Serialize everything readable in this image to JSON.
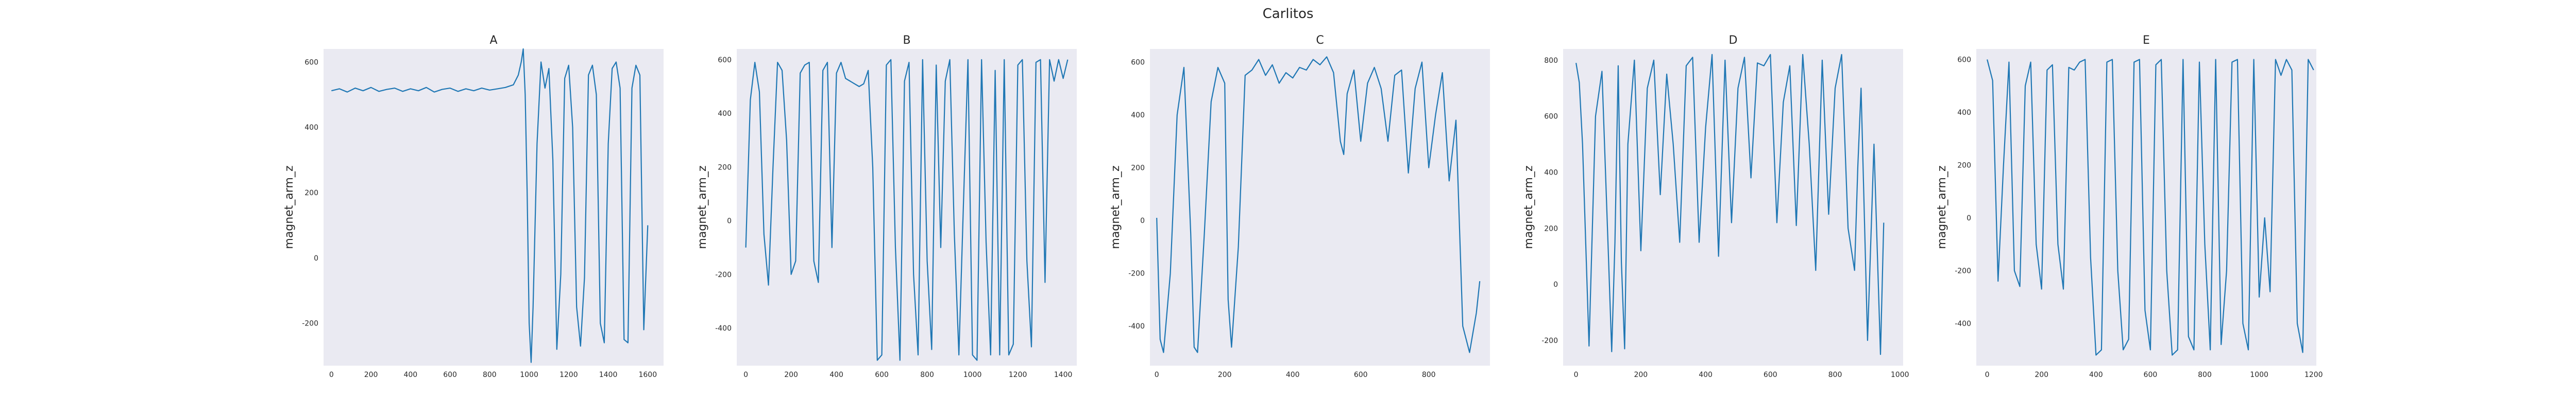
{
  "figure": {
    "suptitle": "Carlitos"
  },
  "chart_data": [
    {
      "type": "line",
      "title": "A",
      "xlabel": "",
      "ylabel": "magnet_arm_z",
      "xlim": [
        -40,
        1680
      ],
      "ylim": [
        -330,
        640
      ],
      "xticks": [
        0,
        200,
        400,
        600,
        800,
        1000,
        1200,
        1400,
        1600
      ],
      "yticks": [
        -200,
        0,
        200,
        400,
        600
      ],
      "grid": false,
      "series": [
        {
          "x": [
            0,
            40,
            80,
            120,
            160,
            200,
            240,
            280,
            320,
            360,
            400,
            440,
            480,
            520,
            560,
            600,
            640,
            680,
            720,
            760,
            800,
            840,
            880,
            920,
            945,
            960,
            970,
            980,
            990,
            1000,
            1010,
            1020,
            1040,
            1060,
            1080,
            1100,
            1120,
            1140,
            1160,
            1180,
            1200,
            1220,
            1240,
            1260,
            1280,
            1300,
            1320,
            1340,
            1360,
            1380,
            1400,
            1420,
            1440,
            1460,
            1480,
            1500,
            1520,
            1540,
            1560,
            1580,
            1600
          ],
          "y": [
            512,
            518,
            508,
            520,
            512,
            522,
            510,
            516,
            520,
            510,
            518,
            512,
            522,
            508,
            516,
            520,
            510,
            518,
            512,
            520,
            514,
            518,
            522,
            530,
            560,
            600,
            640,
            500,
            200,
            -200,
            -320,
            -150,
            350,
            600,
            520,
            580,
            300,
            -280,
            -50,
            550,
            590,
            400,
            -150,
            -270,
            -60,
            560,
            590,
            500,
            -200,
            -260,
            350,
            580,
            600,
            520,
            -250,
            -260,
            520,
            590,
            560,
            -220,
            100
          ]
        }
      ]
    },
    {
      "type": "line",
      "title": "B",
      "xlabel": "",
      "ylabel": "magnet_arm_z",
      "xlim": [
        -40,
        1460
      ],
      "ylim": [
        -540,
        640
      ],
      "xticks": [
        0,
        200,
        400,
        600,
        800,
        1000,
        1200,
        1400
      ],
      "yticks": [
        -400,
        -200,
        0,
        200,
        400,
        600
      ],
      "grid": false,
      "series": [
        {
          "x": [
            0,
            20,
            40,
            60,
            80,
            100,
            120,
            140,
            160,
            180,
            200,
            220,
            240,
            260,
            280,
            300,
            320,
            340,
            360,
            380,
            400,
            420,
            440,
            460,
            480,
            500,
            520,
            540,
            560,
            580,
            600,
            620,
            640,
            660,
            680,
            700,
            720,
            740,
            760,
            780,
            800,
            820,
            840,
            860,
            880,
            900,
            920,
            940,
            960,
            980,
            1000,
            1020,
            1040,
            1060,
            1080,
            1100,
            1120,
            1140,
            1160,
            1180,
            1200,
            1220,
            1240,
            1260,
            1280,
            1300,
            1320,
            1340,
            1360,
            1380,
            1400,
            1420
          ],
          "y": [
            -100,
            450,
            590,
            480,
            -50,
            -240,
            200,
            590,
            560,
            300,
            -200,
            -150,
            550,
            580,
            590,
            -150,
            -230,
            560,
            590,
            -100,
            550,
            590,
            530,
            520,
            510,
            500,
            510,
            560,
            200,
            -520,
            -500,
            580,
            600,
            -100,
            -520,
            520,
            590,
            -200,
            -500,
            600,
            -150,
            -480,
            580,
            -100,
            520,
            600,
            -50,
            -500,
            60,
            600,
            -500,
            -520,
            600,
            -80,
            -500,
            560,
            -500,
            600,
            -500,
            -460,
            580,
            600,
            -150,
            -470,
            590,
            600,
            -230,
            600,
            520,
            600,
            530,
            600
          ]
        }
      ]
    },
    {
      "type": "line",
      "title": "C",
      "xlabel": "",
      "ylabel": "magnet_arm_z",
      "xlim": [
        -20,
        980
      ],
      "ylim": [
        -550,
        650
      ],
      "xticks": [
        0,
        200,
        400,
        600,
        800
      ],
      "yticks": [
        -400,
        -200,
        0,
        200,
        400,
        600
      ],
      "grid": false,
      "series": [
        {
          "x": [
            0,
            10,
            20,
            40,
            60,
            80,
            100,
            110,
            120,
            140,
            160,
            180,
            200,
            210,
            220,
            240,
            260,
            280,
            300,
            320,
            340,
            360,
            380,
            400,
            420,
            440,
            460,
            480,
            500,
            520,
            540,
            550,
            560,
            580,
            600,
            620,
            640,
            660,
            680,
            700,
            720,
            740,
            760,
            780,
            800,
            820,
            840,
            860,
            880,
            900,
            920,
            940,
            950
          ],
          "y": [
            10,
            -450,
            -500,
            -200,
            400,
            580,
            -50,
            -480,
            -500,
            -50,
            450,
            580,
            520,
            -300,
            -480,
            -100,
            550,
            570,
            610,
            550,
            590,
            520,
            560,
            540,
            580,
            570,
            610,
            590,
            620,
            560,
            300,
            250,
            480,
            570,
            300,
            520,
            580,
            500,
            300,
            550,
            570,
            180,
            500,
            600,
            200,
            400,
            560,
            150,
            380,
            -400,
            -500,
            -350,
            -230
          ]
        }
      ]
    },
    {
      "type": "line",
      "title": "D",
      "xlabel": "",
      "ylabel": "magnet_arm_z",
      "xlim": [
        -40,
        1010
      ],
      "ylim": [
        -290,
        840
      ],
      "xticks": [
        0,
        200,
        400,
        600,
        800,
        1000
      ],
      "yticks": [
        -200,
        0,
        200,
        400,
        600,
        800
      ],
      "grid": false,
      "series": [
        {
          "x": [
            0,
            10,
            20,
            40,
            60,
            80,
            100,
            110,
            120,
            130,
            140,
            150,
            160,
            180,
            200,
            220,
            240,
            260,
            280,
            300,
            320,
            340,
            360,
            380,
            400,
            420,
            440,
            460,
            480,
            500,
            520,
            540,
            560,
            580,
            600,
            620,
            640,
            660,
            680,
            700,
            720,
            740,
            760,
            780,
            800,
            820,
            840,
            860,
            870,
            880,
            900,
            920,
            940,
            950
          ],
          "y": [
            790,
            720,
            500,
            -220,
            600,
            760,
            100,
            -240,
            150,
            780,
            80,
            -230,
            500,
            800,
            120,
            700,
            800,
            320,
            750,
            500,
            150,
            780,
            810,
            150,
            560,
            820,
            100,
            800,
            220,
            700,
            810,
            380,
            790,
            780,
            820,
            220,
            650,
            780,
            210,
            820,
            500,
            50,
            800,
            250,
            700,
            820,
            200,
            50,
            420,
            700,
            -200,
            500,
            -250,
            220
          ]
        }
      ]
    },
    {
      "type": "line",
      "title": "E",
      "xlabel": "",
      "ylabel": "magnet_arm_z",
      "xlim": [
        -40,
        1210
      ],
      "ylim": [
        -560,
        640
      ],
      "xticks": [
        0,
        200,
        400,
        600,
        800,
        1000,
        1200
      ],
      "yticks": [
        -400,
        -200,
        0,
        200,
        400,
        600
      ],
      "grid": false,
      "series": [
        {
          "x": [
            0,
            20,
            40,
            60,
            80,
            100,
            120,
            140,
            160,
            180,
            200,
            220,
            240,
            260,
            280,
            300,
            320,
            340,
            360,
            380,
            400,
            420,
            440,
            460,
            480,
            500,
            520,
            540,
            560,
            580,
            600,
            620,
            640,
            660,
            680,
            700,
            720,
            740,
            760,
            780,
            800,
            820,
            840,
            860,
            880,
            900,
            920,
            940,
            960,
            980,
            1000,
            1020,
            1040,
            1060,
            1080,
            1100,
            1120,
            1140,
            1160,
            1180,
            1200
          ],
          "y": [
            600,
            520,
            -240,
            200,
            590,
            -200,
            -260,
            500,
            590,
            -100,
            -270,
            560,
            580,
            -100,
            -270,
            570,
            560,
            590,
            600,
            -150,
            -520,
            -500,
            590,
            600,
            -200,
            -500,
            -460,
            590,
            600,
            -350,
            -500,
            580,
            600,
            -200,
            -520,
            -500,
            600,
            -450,
            -500,
            590,
            -100,
            -500,
            600,
            -480,
            -200,
            590,
            600,
            -400,
            -500,
            600,
            -300,
            0,
            -280,
            600,
            540,
            600,
            560,
            -400,
            -510,
            600,
            560
          ]
        }
      ]
    }
  ]
}
